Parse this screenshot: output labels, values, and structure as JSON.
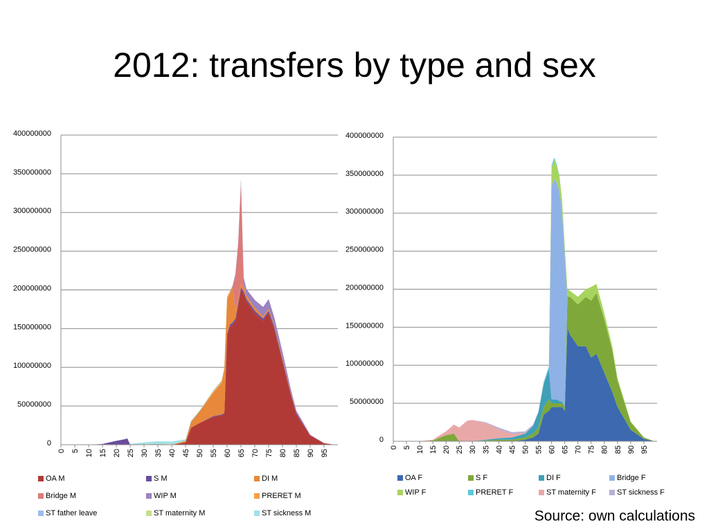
{
  "title": "2012: transfers by type and sex",
  "source": "Source: own calculations",
  "chart_data": [
    {
      "type": "stacked_area",
      "x": [
        0,
        10,
        15,
        20,
        23,
        24,
        25,
        30,
        35,
        40,
        45,
        47,
        50,
        55,
        58,
        59,
        60,
        61,
        62,
        63,
        64,
        65,
        66,
        67,
        70,
        73,
        75,
        77,
        80,
        83,
        85,
        90,
        95,
        99
      ],
      "xlim": [
        0,
        100
      ],
      "xticks": [
        0,
        5,
        10,
        15,
        20,
        25,
        30,
        35,
        40,
        45,
        50,
        55,
        60,
        65,
        70,
        75,
        80,
        85,
        90,
        95
      ],
      "ylim": [
        0,
        400000000
      ],
      "yticks": [
        0,
        50000000,
        100000000,
        150000000,
        200000000,
        250000000,
        300000000,
        350000000,
        400000000
      ],
      "grid": true,
      "series": [
        {
          "name": "OA M",
          "color": "#b23a36",
          "values": [
            0,
            0,
            0,
            0,
            0,
            0,
            0,
            0,
            0,
            0,
            3000000,
            22000000,
            28000000,
            36000000,
            38000000,
            40000000,
            140000000,
            152000000,
            155000000,
            160000000,
            180000000,
            200000000,
            195000000,
            185000000,
            170000000,
            160000000,
            170000000,
            150000000,
            108000000,
            65000000,
            40000000,
            12000000,
            2000000,
            0
          ]
        },
        {
          "name": "S M",
          "color": "#6a4c9c",
          "values": [
            0,
            0,
            1000000,
            5000000,
            7000000,
            8000000,
            0,
            0,
            0,
            0,
            0,
            0,
            0,
            1000000,
            1000000,
            1000000,
            3000000,
            3000000,
            3000000,
            3000000,
            3000000,
            3000000,
            3000000,
            3000000,
            3000000,
            3000000,
            3000000,
            3000000,
            2000000,
            1000000,
            1000000,
            0,
            0,
            0
          ]
        },
        {
          "name": "DI M",
          "color": "#e8883a",
          "values": [
            0,
            0,
            0,
            0,
            0,
            0,
            0,
            0,
            0,
            0,
            2000000,
            8000000,
            15000000,
            30000000,
            40000000,
            55000000,
            45000000,
            40000000,
            45000000,
            10000000,
            5000000,
            5000000,
            5000000,
            5000000,
            4000000,
            3000000,
            3000000,
            2000000,
            2000000,
            1000000,
            0,
            0,
            0,
            0
          ]
        },
        {
          "name": "Bridge M",
          "color": "#dc7b78",
          "values": [
            0,
            0,
            0,
            0,
            0,
            0,
            0,
            0,
            0,
            0,
            0,
            0,
            0,
            0,
            0,
            0,
            0,
            0,
            0,
            45000000,
            70000000,
            130000000,
            5000000,
            0,
            0,
            0,
            0,
            0,
            0,
            0,
            0,
            0,
            0,
            0
          ]
        },
        {
          "name": "WIP M",
          "color": "#9b82c2",
          "values": [
            0,
            0,
            0,
            0,
            0,
            0,
            0,
            0,
            0,
            0,
            0,
            0,
            0,
            0,
            0,
            0,
            0,
            1000000,
            2000000,
            3000000,
            3000000,
            5000000,
            8000000,
            8000000,
            10000000,
            12000000,
            12000000,
            10000000,
            8000000,
            5000000,
            3000000,
            1000000,
            0,
            0
          ]
        },
        {
          "name": "PRERET M",
          "color": "#f5a04a",
          "values": [
            0,
            0,
            0,
            0,
            0,
            0,
            0,
            0,
            0,
            0,
            0,
            0,
            0,
            2000000,
            3000000,
            3000000,
            3000000,
            2000000,
            1000000,
            0,
            0,
            0,
            0,
            0,
            0,
            0,
            0,
            0,
            0,
            0,
            0,
            0,
            0,
            0
          ]
        },
        {
          "name": "ST father leave",
          "color": "#9cbde8",
          "values": [
            0,
            0,
            0,
            0,
            0,
            0,
            0,
            500000,
            1000000,
            500000,
            0,
            0,
            0,
            0,
            0,
            0,
            0,
            0,
            0,
            0,
            0,
            0,
            0,
            0,
            0,
            0,
            0,
            0,
            0,
            0,
            0,
            0,
            0,
            0
          ]
        },
        {
          "name": "ST maternity M",
          "color": "#c5dd8e",
          "values": [
            0,
            0,
            0,
            0,
            0,
            0,
            0,
            500000,
            500000,
            500000,
            0,
            0,
            0,
            0,
            0,
            0,
            0,
            0,
            0,
            0,
            0,
            0,
            0,
            0,
            0,
            0,
            0,
            0,
            0,
            0,
            0,
            0,
            0,
            0
          ]
        },
        {
          "name": "ST sickness M",
          "color": "#9fe0e8",
          "values": [
            0,
            0,
            0,
            0,
            0,
            0,
            1000000,
            2000000,
            3000000,
            3000000,
            2000000,
            1000000,
            1000000,
            1000000,
            1000000,
            1000000,
            0,
            0,
            0,
            0,
            0,
            0,
            0,
            0,
            0,
            0,
            0,
            0,
            0,
            0,
            0,
            0,
            0,
            0
          ]
        }
      ]
    },
    {
      "type": "stacked_area",
      "x": [
        0,
        10,
        15,
        20,
        23,
        25,
        28,
        30,
        35,
        40,
        45,
        50,
        53,
        55,
        57,
        59,
        60,
        61,
        62,
        63,
        64,
        65,
        66,
        67,
        70,
        73,
        75,
        77,
        80,
        83,
        85,
        90,
        95,
        99
      ],
      "xlim": [
        0,
        100
      ],
      "xticks": [
        0,
        5,
        10,
        15,
        20,
        25,
        30,
        35,
        40,
        45,
        50,
        55,
        60,
        65,
        70,
        75,
        80,
        85,
        90,
        95
      ],
      "ylim": [
        0,
        400000000
      ],
      "yticks": [
        0,
        50000000,
        100000000,
        150000000,
        200000000,
        250000000,
        300000000,
        350000000,
        400000000
      ],
      "grid": true,
      "series": [
        {
          "name": "OA F",
          "color": "#3c69b0",
          "values": [
            0,
            0,
            0,
            0,
            0,
            0,
            0,
            0,
            0,
            0,
            0,
            2000000,
            5000000,
            10000000,
            35000000,
            40000000,
            45000000,
            45000000,
            45000000,
            45000000,
            45000000,
            40000000,
            150000000,
            140000000,
            125000000,
            125000000,
            110000000,
            115000000,
            90000000,
            65000000,
            45000000,
            15000000,
            3000000,
            0
          ]
        },
        {
          "name": "S F",
          "color": "#7fa83a",
          "values": [
            0,
            0,
            1000000,
            8000000,
            10000000,
            0,
            0,
            0,
            1000000,
            2000000,
            2000000,
            3000000,
            5000000,
            8000000,
            10000000,
            15000000,
            5000000,
            5000000,
            5000000,
            5000000,
            5000000,
            5000000,
            40000000,
            50000000,
            55000000,
            65000000,
            75000000,
            80000000,
            70000000,
            55000000,
            35000000,
            10000000,
            2000000,
            0
          ]
        },
        {
          "name": "DI F",
          "color": "#3fa0b8",
          "values": [
            0,
            0,
            0,
            0,
            0,
            0,
            0,
            0,
            1000000,
            2000000,
            3000000,
            5000000,
            10000000,
            20000000,
            30000000,
            40000000,
            5000000,
            5000000,
            5000000,
            3000000,
            2000000,
            1000000,
            0,
            0,
            0,
            0,
            0,
            0,
            0,
            0,
            0,
            0,
            0,
            0
          ]
        },
        {
          "name": "Bridge F",
          "color": "#8fb2e6",
          "values": [
            0,
            0,
            0,
            0,
            0,
            0,
            0,
            0,
            0,
            0,
            0,
            0,
            0,
            0,
            0,
            0,
            280000000,
            290000000,
            285000000,
            275000000,
            250000000,
            200000000,
            0,
            0,
            0,
            0,
            0,
            0,
            0,
            0,
            0,
            0,
            0,
            0
          ]
        },
        {
          "name": "WIP F",
          "color": "#a7d45f",
          "values": [
            0,
            0,
            0,
            0,
            0,
            0,
            0,
            0,
            0,
            0,
            0,
            0,
            0,
            0,
            0,
            0,
            25000000,
            25000000,
            22000000,
            20000000,
            15000000,
            10000000,
            10000000,
            8000000,
            10000000,
            10000000,
            18000000,
            12000000,
            8000000,
            5000000,
            3000000,
            1000000,
            0,
            0
          ]
        },
        {
          "name": "PRERET F",
          "color": "#5cc8dc",
          "values": [
            0,
            0,
            0,
            0,
            0,
            0,
            0,
            0,
            0,
            0,
            0,
            0,
            0,
            0,
            2000000,
            3000000,
            3000000,
            3000000,
            2000000,
            1000000,
            0,
            0,
            0,
            0,
            0,
            0,
            0,
            0,
            0,
            0,
            0,
            0,
            0,
            0
          ]
        },
        {
          "name": "ST maternity F",
          "color": "#e8a8a8",
          "values": [
            0,
            0,
            1000000,
            5000000,
            12000000,
            18000000,
            27000000,
            28000000,
            22000000,
            12000000,
            5000000,
            1000000,
            0,
            0,
            0,
            0,
            0,
            0,
            0,
            0,
            0,
            0,
            0,
            0,
            0,
            0,
            0,
            0,
            0,
            0,
            0,
            0,
            0,
            0
          ]
        },
        {
          "name": "ST sickness F",
          "color": "#b8b0d8",
          "values": [
            0,
            0,
            0,
            0,
            0,
            0,
            0,
            0,
            1000000,
            2000000,
            2000000,
            2000000,
            2000000,
            1000000,
            1000000,
            1000000,
            0,
            0,
            0,
            0,
            0,
            0,
            0,
            0,
            0,
            0,
            0,
            0,
            0,
            0,
            0,
            0,
            0,
            0
          ]
        }
      ]
    }
  ]
}
